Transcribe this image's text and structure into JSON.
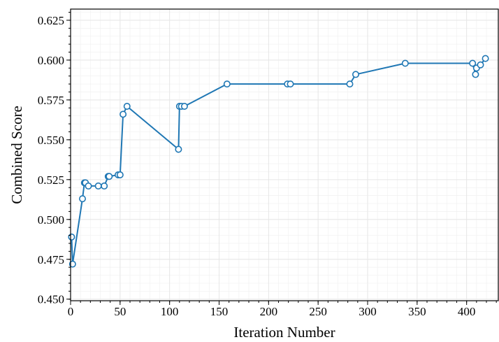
{
  "chart_data": {
    "type": "line",
    "title": "",
    "xlabel": "Iteration Number",
    "ylabel": "Combined Score",
    "xlim": [
      0,
      432
    ],
    "ylim": [
      0.449,
      0.632
    ],
    "xticks": [
      0,
      50,
      100,
      150,
      200,
      250,
      300,
      350,
      400
    ],
    "yticks": [
      0.45,
      0.475,
      0.5,
      0.525,
      0.55,
      0.575,
      0.6,
      0.625
    ],
    "xtick_labels": [
      "0",
      "50",
      "100",
      "150",
      "200",
      "250",
      "300",
      "350",
      "400"
    ],
    "ytick_labels": [
      "0.450",
      "0.475",
      "0.500",
      "0.525",
      "0.550",
      "0.575",
      "0.600",
      "0.625"
    ],
    "grid": true,
    "line_color": "#1f77b4",
    "marker": "open-circle",
    "series": [
      {
        "x": [
          1,
          2,
          12,
          14,
          15,
          18,
          28,
          34,
          38,
          39,
          48,
          50,
          53,
          57,
          109,
          110,
          112,
          115,
          158,
          219,
          222,
          282,
          288,
          338,
          406,
          409,
          410,
          414,
          419
        ],
        "y": [
          0.489,
          0.472,
          0.513,
          0.523,
          0.523,
          0.521,
          0.521,
          0.521,
          0.527,
          0.527,
          0.528,
          0.528,
          0.566,
          0.571,
          0.544,
          0.571,
          0.571,
          0.571,
          0.585,
          0.585,
          0.585,
          0.585,
          0.591,
          0.598,
          0.598,
          0.591,
          0.595,
          0.597,
          0.601
        ]
      }
    ]
  }
}
